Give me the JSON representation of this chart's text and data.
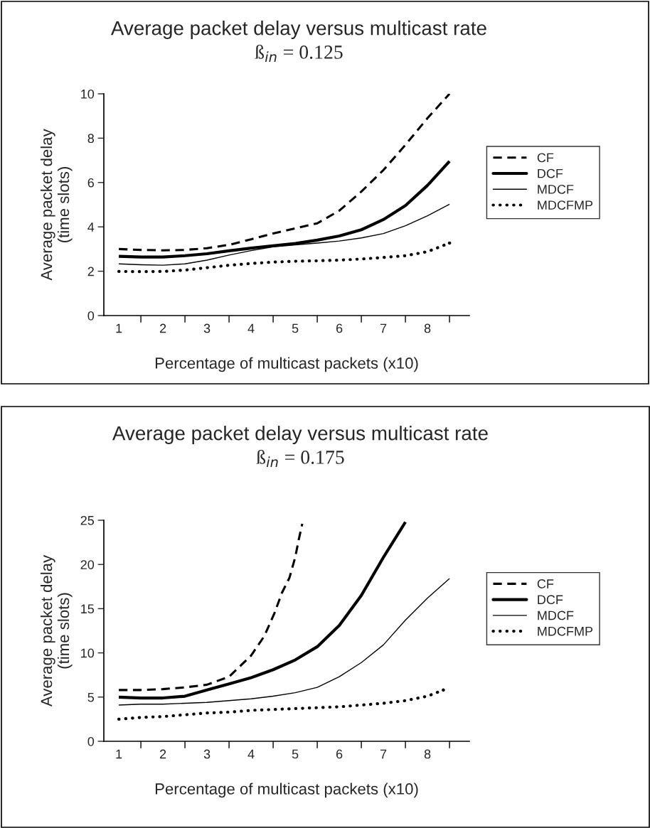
{
  "chart_data": [
    {
      "type": "line",
      "title": "Average packet delay versus multicast rate",
      "subtitle": "ß$_{in}$ = 0.125",
      "xlabel": "Percentage of multicast packets (x10)",
      "ylabel": "Average packet delay\n(time slots)",
      "x": [
        1,
        1.5,
        2,
        2.5,
        3,
        3.5,
        4,
        4.5,
        5,
        5.5,
        6,
        6.5,
        7,
        7.5,
        8,
        8.5
      ],
      "xlim": [
        0.66,
        8.95
      ],
      "xticks": [
        1,
        {
          "value": 1.5,
          "label": null
        },
        2,
        {
          "value": 2.5,
          "label": null
        },
        3,
        {
          "value": 3.5,
          "label": null
        },
        4,
        {
          "value": 4.5,
          "label": null
        },
        5,
        {
          "value": 5.5,
          "label": null
        },
        6,
        {
          "value": 6.5,
          "label": null
        },
        7,
        {
          "value": 7.5,
          "label": null
        },
        8,
        {
          "value": 8.5,
          "label": null
        }
      ],
      "ylim": [
        0,
        10
      ],
      "yticks": [
        0,
        2,
        4,
        6,
        8,
        10
      ],
      "grid": false,
      "legend": "right",
      "marker": "none",
      "series": [
        {
          "name": "CF",
          "color": "#000000",
          "line_style": "dashed",
          "values": [
            3.0,
            2.96,
            2.94,
            2.96,
            3.04,
            3.19,
            3.44,
            3.7,
            3.93,
            4.16,
            4.73,
            5.59,
            6.56,
            7.7,
            8.9,
            10.0
          ]
        },
        {
          "name": "DCF",
          "color": "#000000",
          "line_style": "solid",
          "values": [
            2.67,
            2.64,
            2.64,
            2.7,
            2.79,
            2.92,
            3.04,
            3.15,
            3.25,
            3.4,
            3.59,
            3.87,
            4.33,
            4.96,
            5.87,
            6.96
          ]
        },
        {
          "name": "MDCF",
          "color": "#000000",
          "line_style": "solid",
          "values": [
            2.33,
            2.29,
            2.27,
            2.33,
            2.5,
            2.73,
            2.93,
            3.1,
            3.19,
            3.27,
            3.36,
            3.5,
            3.7,
            4.05,
            4.5,
            5.02
          ]
        },
        {
          "name": "MDCFMP",
          "color": "#000000",
          "line_style": "dotted",
          "values": [
            1.99,
            1.98,
            1.99,
            2.05,
            2.16,
            2.27,
            2.35,
            2.41,
            2.45,
            2.47,
            2.5,
            2.55,
            2.62,
            2.7,
            2.88,
            3.27
          ]
        }
      ]
    },
    {
      "type": "line",
      "title": "Average packet delay versus multicast rate",
      "subtitle": "ß$_{in}$ = 0.175",
      "xlabel": "Percentage of multicast packets (x10)",
      "ylabel": "Average packet delay\n(time slots)",
      "x": [
        1,
        1.5,
        2,
        2.5,
        3,
        3.5,
        4,
        4.5,
        5,
        5.5,
        6,
        6.5,
        7,
        7.5,
        8,
        8.5
      ],
      "xlim": [
        0.66,
        8.95
      ],
      "xticks": [
        1,
        {
          "value": 1.5,
          "label": null
        },
        2,
        {
          "value": 2.5,
          "label": null
        },
        3,
        {
          "value": 3.5,
          "label": null
        },
        4,
        {
          "value": 4.5,
          "label": null
        },
        5,
        {
          "value": 5.5,
          "label": null
        },
        6,
        {
          "value": 6.5,
          "label": null
        },
        7,
        {
          "value": 7.5,
          "label": null
        },
        8,
        {
          "value": 8.5,
          "label": null
        }
      ],
      "ylim": [
        0,
        25
      ],
      "yticks": [
        0,
        5,
        10,
        15,
        20,
        25
      ],
      "grid": false,
      "legend": "right",
      "marker": "none",
      "series": [
        {
          "name": "CF",
          "color": "#000000",
          "line_style": "dashed",
          "x": [
            1,
            1.5,
            2,
            2.5,
            3,
            3.5,
            4,
            4.3,
            4.53,
            4.7,
            4.87,
            5.0,
            5.08,
            5.16
          ],
          "values": [
            5.8,
            5.8,
            5.9,
            6.1,
            6.4,
            7.3,
            9.7,
            11.9,
            14.5,
            16.8,
            18.5,
            20.8,
            22.8,
            24.6
          ]
        },
        {
          "name": "DCF",
          "color": "#000000",
          "line_style": "solid",
          "x": [
            1,
            1.5,
            2,
            2.5,
            3,
            3.5,
            4,
            4.5,
            5,
            5.5,
            6,
            6.5,
            7,
            7.5
          ],
          "values": [
            5.0,
            4.9,
            4.9,
            5.1,
            5.8,
            6.5,
            7.2,
            8.1,
            9.2,
            10.7,
            13.1,
            16.5,
            20.8,
            24.8
          ]
        },
        {
          "name": "MDCF",
          "color": "#000000",
          "line_style": "solid",
          "values": [
            4.1,
            4.2,
            4.2,
            4.3,
            4.4,
            4.6,
            4.8,
            5.1,
            5.5,
            6.1,
            7.3,
            8.9,
            10.9,
            13.7,
            16.2,
            18.4
          ]
        },
        {
          "name": "MDCFMP",
          "color": "#000000",
          "line_style": "dotted",
          "x": [
            1,
            1.5,
            2,
            2.5,
            3,
            3.5,
            4,
            4.5,
            5,
            5.5,
            6,
            6.5,
            7,
            7.5,
            8,
            8.36
          ],
          "values": [
            2.5,
            2.7,
            2.8,
            3.0,
            3.2,
            3.3,
            3.5,
            3.6,
            3.7,
            3.8,
            3.9,
            4.1,
            4.3,
            4.6,
            5.1,
            5.8
          ]
        }
      ]
    }
  ]
}
